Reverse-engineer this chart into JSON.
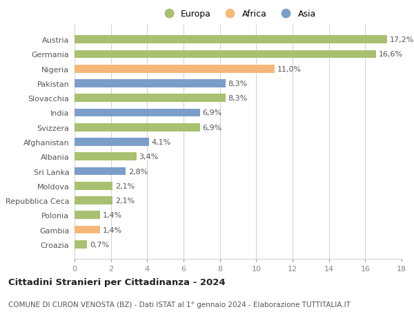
{
  "countries": [
    "Austria",
    "Germania",
    "Nigeria",
    "Pakistan",
    "Slovacchia",
    "India",
    "Svizzera",
    "Afghanistan",
    "Albania",
    "Sri Lanka",
    "Moldova",
    "Repubblica Ceca",
    "Polonia",
    "Gambia",
    "Croazia"
  ],
  "values": [
    17.2,
    16.6,
    11.0,
    8.3,
    8.3,
    6.9,
    6.9,
    4.1,
    3.4,
    2.8,
    2.1,
    2.1,
    1.4,
    1.4,
    0.7
  ],
  "labels": [
    "17,2%",
    "16,6%",
    "11,0%",
    "8,3%",
    "8,3%",
    "6,9%",
    "6,9%",
    "4,1%",
    "3,4%",
    "2,8%",
    "2,1%",
    "2,1%",
    "1,4%",
    "1,4%",
    "0,7%"
  ],
  "continents": [
    "Europa",
    "Europa",
    "Africa",
    "Asia",
    "Europa",
    "Asia",
    "Europa",
    "Asia",
    "Europa",
    "Asia",
    "Europa",
    "Europa",
    "Europa",
    "Africa",
    "Europa"
  ],
  "colors": {
    "Europa": "#a8c070",
    "Africa": "#f5b87a",
    "Asia": "#7b9ec9"
  },
  "xlim": [
    0,
    18
  ],
  "xticks": [
    0,
    2,
    4,
    6,
    8,
    10,
    12,
    14,
    16,
    18
  ],
  "title": "Cittadini Stranieri per Cittadinanza - 2024",
  "subtitle": "COMUNE DI CURON VENOSTA (BZ) - Dati ISTAT al 1° gennaio 2024 - Elaborazione TUTTITALIA.IT",
  "background_color": "#ffffff",
  "grid_color": "#d0d0d0",
  "bar_height": 0.55,
  "label_fontsize": 8,
  "tick_fontsize": 8,
  "title_fontsize": 9.5,
  "subtitle_fontsize": 7.5,
  "legend_order": [
    "Europa",
    "Africa",
    "Asia"
  ]
}
